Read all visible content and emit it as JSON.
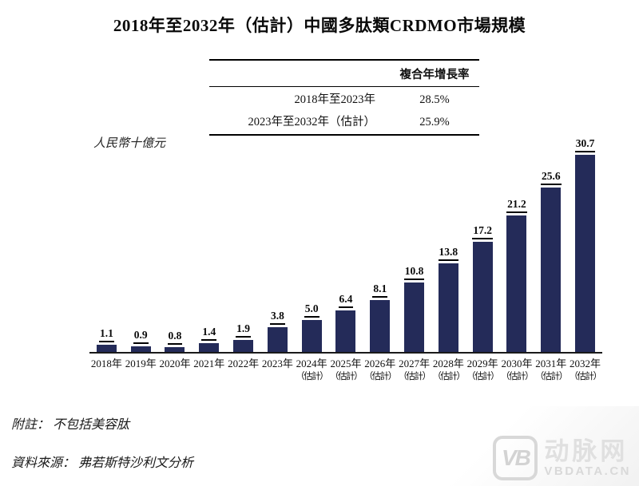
{
  "title": "2018年至2032年（估計）中國多肽類CRDMO市場規模",
  "cagr_table": {
    "header": "複合年增長率",
    "rows": [
      {
        "period": "2018年至2023年",
        "value": "28.5%"
      },
      {
        "period": "2023年至2032年（估計）",
        "value": "25.9%"
      }
    ]
  },
  "chart_data": {
    "type": "bar",
    "title": "2018年至2032年（估計）中國多肽類CRDMO市場規模",
    "ylabel": "人民幣十億元",
    "xlabel": "",
    "categories": [
      "2018年",
      "2019年",
      "2020年",
      "2021年",
      "2022年",
      "2023年",
      "2024年",
      "2025年",
      "2026年",
      "2027年",
      "2028年",
      "2029年",
      "2030年",
      "2031年",
      "2032年"
    ],
    "estimate_note": "（估計）",
    "estimate_start_index": 6,
    "values": [
      1.1,
      0.9,
      0.8,
      1.4,
      1.9,
      3.8,
      5.0,
      6.4,
      8.1,
      10.8,
      13.8,
      17.2,
      21.2,
      25.6,
      30.7
    ],
    "ylim": [
      0,
      32
    ],
    "bar_color": "#242b59",
    "grid": false,
    "legend": "none",
    "value_labels": "above-bars-underlined"
  },
  "footnotes": {
    "note": "附註： 不包括美容肽",
    "source": "資料來源： 弗若斯特沙利文分析"
  },
  "watermark": {
    "logo_text": "VB",
    "brand": "动脉网",
    "domain": "VBDATA.CN"
  }
}
